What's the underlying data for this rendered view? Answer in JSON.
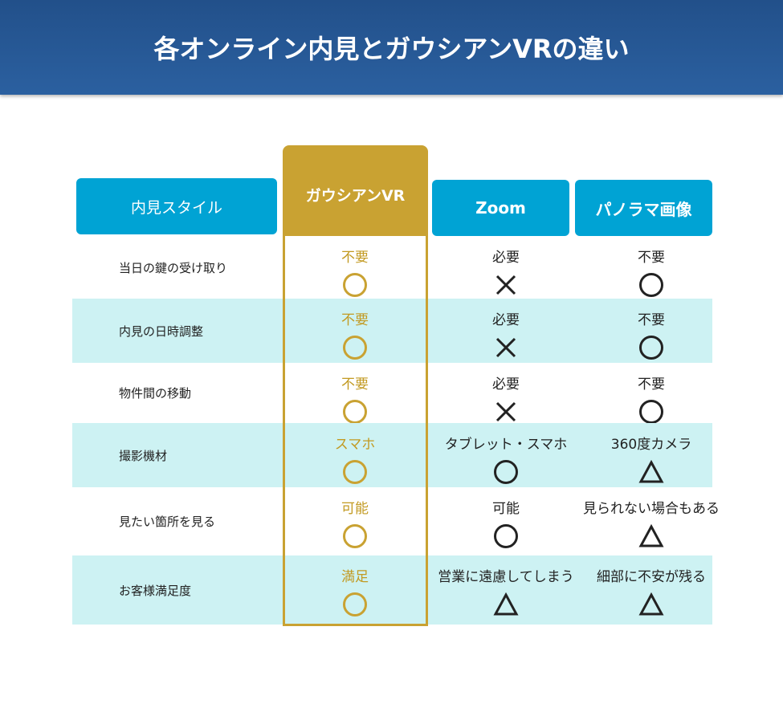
{
  "title": "各オンライン内見とガウシアンVRの違い",
  "headers": {
    "style": "内見スタイル",
    "gaussian": "ガウシアンVR",
    "zoom": "Zoom",
    "panorama": "パノラマ画像"
  },
  "colors": {
    "header_bg": "#2a5f9e",
    "column_header": "#00a3d4",
    "gold": "#c9a232",
    "row_alt": "#cdf2f3"
  },
  "rows": [
    {
      "label": "当日の鍵の受け取り",
      "gaussian": {
        "text": "不要",
        "mark": "circle"
      },
      "zoom": {
        "text": "必要",
        "mark": "cross"
      },
      "panorama": {
        "text": "不要",
        "mark": "circle"
      }
    },
    {
      "label": "内見の日時調整",
      "gaussian": {
        "text": "不要",
        "mark": "circle"
      },
      "zoom": {
        "text": "必要",
        "mark": "cross"
      },
      "panorama": {
        "text": "不要",
        "mark": "circle"
      }
    },
    {
      "label": "物件間の移動",
      "gaussian": {
        "text": "不要",
        "mark": "circle"
      },
      "zoom": {
        "text": "必要",
        "mark": "cross"
      },
      "panorama": {
        "text": "不要",
        "mark": "circle"
      }
    },
    {
      "label": "撮影機材",
      "gaussian": {
        "text": "スマホ",
        "mark": "circle"
      },
      "zoom": {
        "text": "タブレット・スマホ",
        "mark": "circle"
      },
      "panorama": {
        "text": "360度カメラ",
        "mark": "triangle"
      }
    },
    {
      "label": "見たい箇所を見る",
      "gaussian": {
        "text": "可能",
        "mark": "circle"
      },
      "zoom": {
        "text": "可能",
        "mark": "circle"
      },
      "panorama": {
        "text": "見られない場合もある",
        "mark": "triangle"
      }
    },
    {
      "label": "お客様満足度",
      "gaussian": {
        "text": "満足",
        "mark": "circle"
      },
      "zoom": {
        "text": "営業に遠慮してしまう",
        "mark": "triangle"
      },
      "panorama": {
        "text": "細部に不安が残る",
        "mark": "triangle"
      }
    }
  ]
}
